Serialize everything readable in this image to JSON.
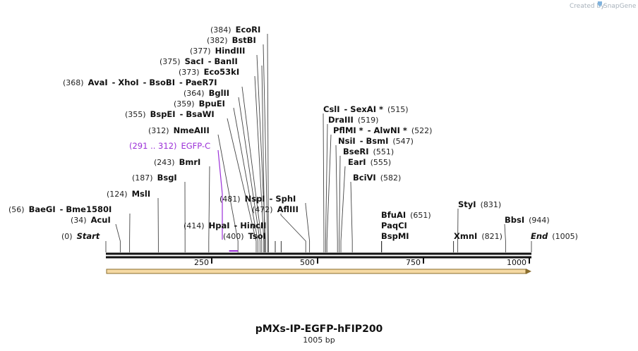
{
  "header": {
    "created_by": "Created by",
    "brand": "SnapGene"
  },
  "plasmid": {
    "name": "pMXs-IP-EGFP-hFIP200",
    "length_label": "1005 bp",
    "length": 1005
  },
  "axis": {
    "ticks": [
      250,
      500,
      750,
      1000
    ]
  },
  "sites": [
    {
      "id": "EcoRI",
      "pos": 384,
      "parts": [
        {
          "t": "(384)",
          "c": "pos"
        },
        {
          "t": "EcoRI",
          "c": "enz"
        }
      ]
    },
    {
      "id": "BstBI",
      "pos": 382,
      "parts": [
        {
          "t": "(382)",
          "c": "pos"
        },
        {
          "t": "BstBI",
          "c": "enz"
        }
      ]
    },
    {
      "id": "HindIII",
      "pos": 377,
      "parts": [
        {
          "t": "(377)",
          "c": "pos"
        },
        {
          "t": "HindIII",
          "c": "enz"
        }
      ]
    },
    {
      "id": "SacI",
      "pos": 375,
      "parts": [
        {
          "t": "(375)",
          "c": "pos"
        },
        {
          "t": "SacI",
          "c": "enz"
        },
        {
          "t": "- BanII",
          "c": "enz"
        }
      ]
    },
    {
      "id": "Eco53kI",
      "pos": 373,
      "parts": [
        {
          "t": "(373)",
          "c": "pos"
        },
        {
          "t": "Eco53kI",
          "c": "enz"
        }
      ]
    },
    {
      "id": "AvaI",
      "pos": 368,
      "parts": [
        {
          "t": "(368)",
          "c": "pos"
        },
        {
          "t": "AvaI",
          "c": "enz"
        },
        {
          "t": "- XhoI",
          "c": "enz"
        },
        {
          "t": "- BsoBI",
          "c": "enz"
        },
        {
          "t": "- PaeR7I",
          "c": "enz"
        }
      ]
    },
    {
      "id": "BglII",
      "pos": 364,
      "parts": [
        {
          "t": "(364)",
          "c": "pos"
        },
        {
          "t": "BglII",
          "c": "enz"
        }
      ]
    },
    {
      "id": "BpuEI",
      "pos": 359,
      "parts": [
        {
          "t": "(359)",
          "c": "pos"
        },
        {
          "t": "BpuEI",
          "c": "enz"
        }
      ]
    },
    {
      "id": "BspEI",
      "pos": 355,
      "parts": [
        {
          "t": "(355)",
          "c": "pos"
        },
        {
          "t": "BspEI",
          "c": "enz"
        },
        {
          "t": "- BsaWI",
          "c": "enz"
        }
      ]
    },
    {
      "id": "NmeAIII",
      "pos": 312,
      "parts": [
        {
          "t": "(312)",
          "c": "pos"
        },
        {
          "t": "NmeAIII",
          "c": "enz"
        }
      ]
    },
    {
      "id": "EGFP-C",
      "pos": 300,
      "feature": true,
      "parts": [
        {
          "t": "(291 .. 312)",
          "c": "feat"
        },
        {
          "t": "EGFP-C",
          "c": "feat"
        }
      ]
    },
    {
      "id": "BmrI",
      "pos": 243,
      "parts": [
        {
          "t": "(243)",
          "c": "pos"
        },
        {
          "t": "BmrI",
          "c": "enz"
        }
      ]
    },
    {
      "id": "BsgI",
      "pos": 187,
      "parts": [
        {
          "t": "(187)",
          "c": "pos"
        },
        {
          "t": "BsgI",
          "c": "enz"
        }
      ]
    },
    {
      "id": "MslI",
      "pos": 124,
      "parts": [
        {
          "t": "(124)",
          "c": "pos"
        },
        {
          "t": "MslI",
          "c": "enz"
        }
      ]
    },
    {
      "id": "BaeGI",
      "pos": 56,
      "parts": [
        {
          "t": "(56)",
          "c": "pos"
        },
        {
          "t": "BaeGI",
          "c": "enz"
        },
        {
          "t": "- Bme1580I",
          "c": "enz"
        }
      ]
    },
    {
      "id": "AcuI",
      "pos": 34,
      "parts": [
        {
          "t": "(34)",
          "c": "pos"
        },
        {
          "t": "AcuI",
          "c": "enz"
        }
      ]
    },
    {
      "id": "Start",
      "pos": 0,
      "parts": [
        {
          "t": "(0)",
          "c": "pos"
        },
        {
          "t": "Start",
          "c": "enz ital"
        }
      ]
    },
    {
      "id": "NspI",
      "pos": 481,
      "parts": [
        {
          "t": "(481)",
          "c": "pos"
        },
        {
          "t": "NspI",
          "c": "enz"
        },
        {
          "t": "- SphI",
          "c": "enz"
        }
      ]
    },
    {
      "id": "AflIII",
      "pos": 472,
      "parts": [
        {
          "t": "(472)",
          "c": "pos"
        },
        {
          "t": "AflIII",
          "c": "enz"
        }
      ]
    },
    {
      "id": "HpaI",
      "pos": 414,
      "parts": [
        {
          "t": "(414)",
          "c": "pos"
        },
        {
          "t": "HpaI",
          "c": "enz"
        },
        {
          "t": "- HincII",
          "c": "enz"
        }
      ]
    },
    {
      "id": "TsoI",
      "pos": 400,
      "parts": [
        {
          "t": "(400)",
          "c": "pos"
        },
        {
          "t": "TsoI",
          "c": "enz"
        }
      ]
    },
    {
      "id": "CslI",
      "pos": 515,
      "parts": [
        {
          "t": "CslI",
          "c": "enz"
        },
        {
          "t": "- SexAI *",
          "c": "enz"
        },
        {
          "t": "(515)",
          "c": "pos"
        }
      ]
    },
    {
      "id": "DraIII",
      "pos": 519,
      "parts": [
        {
          "t": "DraIII",
          "c": "enz"
        },
        {
          "t": "(519)",
          "c": "pos"
        }
      ]
    },
    {
      "id": "PflMI",
      "pos": 522,
      "parts": [
        {
          "t": "PflMI *",
          "c": "enz"
        },
        {
          "t": "- AlwNI *",
          "c": "enz"
        },
        {
          "t": "(522)",
          "c": "pos"
        }
      ]
    },
    {
      "id": "NsiI",
      "pos": 547,
      "parts": [
        {
          "t": "NsiI",
          "c": "enz"
        },
        {
          "t": "- BsmI",
          "c": "enz"
        },
        {
          "t": "(547)",
          "c": "pos"
        }
      ]
    },
    {
      "id": "BseRI",
      "pos": 551,
      "parts": [
        {
          "t": "BseRI",
          "c": "enz"
        },
        {
          "t": "(551)",
          "c": "pos"
        }
      ]
    },
    {
      "id": "EarI",
      "pos": 555,
      "parts": [
        {
          "t": "EarI",
          "c": "enz"
        },
        {
          "t": "(555)",
          "c": "pos"
        }
      ]
    },
    {
      "id": "BciVI",
      "pos": 582,
      "parts": [
        {
          "t": "BciVI",
          "c": "enz"
        },
        {
          "t": "(582)",
          "c": "pos"
        }
      ]
    },
    {
      "id": "BfuAI",
      "pos": 651,
      "parts": [
        {
          "t": "BfuAI",
          "c": "enz"
        },
        {
          "t": "(651)",
          "c": "pos"
        }
      ]
    },
    {
      "id": "PaqCI",
      "pos": 651,
      "parts": [
        {
          "t": "PaqCI",
          "c": "enz"
        }
      ]
    },
    {
      "id": "BspMI",
      "pos": 651,
      "parts": [
        {
          "t": "BspMI",
          "c": "enz"
        }
      ]
    },
    {
      "id": "StyI",
      "pos": 831,
      "parts": [
        {
          "t": "StyI",
          "c": "enz"
        },
        {
          "t": "(831)",
          "c": "pos"
        }
      ]
    },
    {
      "id": "XmnI",
      "pos": 821,
      "parts": [
        {
          "t": "XmnI",
          "c": "enz"
        },
        {
          "t": "(821)",
          "c": "pos"
        }
      ]
    },
    {
      "id": "BbsI",
      "pos": 944,
      "parts": [
        {
          "t": "BbsI",
          "c": "enz"
        },
        {
          "t": "(944)",
          "c": "pos"
        }
      ]
    },
    {
      "id": "End",
      "pos": 1005,
      "parts": [
        {
          "t": "End",
          "c": "enz ital"
        },
        {
          "t": "(1005)",
          "c": "pos"
        }
      ]
    }
  ],
  "colors": {
    "feature": "#9b30d8",
    "orf_fill": "#f5d9a3",
    "orf_edge": "#8a6d2e"
  }
}
